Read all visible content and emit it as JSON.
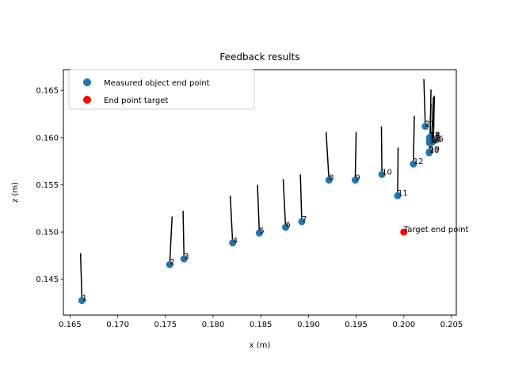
{
  "chart_data": {
    "type": "scatter",
    "title": "Feedback results",
    "xlabel": "x (m)",
    "ylabel": "z (m)",
    "xlim": [
      0.1643,
      0.2055
    ],
    "ylim": [
      0.1412,
      0.1672
    ],
    "xticks": [
      0.165,
      0.17,
      0.175,
      0.18,
      0.185,
      0.19,
      0.195,
      0.2,
      0.205
    ],
    "xtick_labels": [
      "0.165",
      "0.170",
      "0.175",
      "0.180",
      "0.185",
      "0.190",
      "0.195",
      "0.200",
      "0.205"
    ],
    "yticks": [
      0.145,
      0.15,
      0.155,
      0.16,
      0.165
    ],
    "ytick_labels": [
      "0.145",
      "0.150",
      "0.155",
      "0.160",
      "0.165"
    ],
    "grid": false,
    "legend_position": "top-left",
    "series": [
      {
        "name": "Measured object end point",
        "color": "#1f77b4",
        "points": [
          {
            "label": "1",
            "x": 0.16625,
            "z": 0.14275
          },
          {
            "label": "2",
            "x": 0.17545,
            "z": 0.14655
          },
          {
            "label": "3",
            "x": 0.17695,
            "z": 0.14715
          },
          {
            "label": "4",
            "x": 0.18205,
            "z": 0.14885
          },
          {
            "label": "5",
            "x": 0.18485,
            "z": 0.1499
          },
          {
            "label": "6",
            "x": 0.1876,
            "z": 0.1505
          },
          {
            "label": "7",
            "x": 0.1893,
            "z": 0.1511
          },
          {
            "label": "8",
            "x": 0.19215,
            "z": 0.1555
          },
          {
            "label": "9",
            "x": 0.1949,
            "z": 0.1555
          },
          {
            "label": "10",
            "x": 0.1977,
            "z": 0.1561
          },
          {
            "label": "11",
            "x": 0.19935,
            "z": 0.15385
          },
          {
            "label": "12",
            "x": 0.201,
            "z": 0.1572
          },
          {
            "label": "13",
            "x": 0.2027,
            "z": 0.15995
          },
          {
            "label": "14",
            "x": 0.2029,
            "z": 0.1595
          },
          {
            "label": "15",
            "x": 0.2027,
            "z": 0.15945
          },
          {
            "label": "16",
            "x": 0.2031,
            "z": 0.1596
          },
          {
            "label": "17",
            "x": 0.2027,
            "z": 0.15965
          },
          {
            "label": "18",
            "x": 0.20275,
            "z": 0.16005
          },
          {
            "label": "19",
            "x": 0.2027,
            "z": 0.1585
          },
          {
            "label": "20",
            "x": 0.20265,
            "z": 0.1584
          },
          {
            "label": "21",
            "x": 0.20225,
            "z": 0.1612
          }
        ]
      },
      {
        "name": "End point target",
        "color": "#ff0000",
        "points": [
          {
            "label": "Target end point",
            "x": 0.2,
            "z": 0.15
          }
        ]
      }
    ],
    "direction_lines": {
      "color": "#000000",
      "segments": [
        {
          "x0": 0.16625,
          "z0": 0.14275,
          "x1": 0.1661,
          "z1": 0.14775
        },
        {
          "x0": 0.17545,
          "z0": 0.14655,
          "x1": 0.1757,
          "z1": 0.15165
        },
        {
          "x0": 0.17695,
          "z0": 0.14715,
          "x1": 0.17685,
          "z1": 0.15225
        },
        {
          "x0": 0.18205,
          "z0": 0.14885,
          "x1": 0.1818,
          "z1": 0.15385
        },
        {
          "x0": 0.18485,
          "z0": 0.1499,
          "x1": 0.18465,
          "z1": 0.155
        },
        {
          "x0": 0.1876,
          "z0": 0.1505,
          "x1": 0.18735,
          "z1": 0.1556
        },
        {
          "x0": 0.1893,
          "z0": 0.1511,
          "x1": 0.18915,
          "z1": 0.1561
        },
        {
          "x0": 0.19215,
          "z0": 0.1555,
          "x1": 0.19185,
          "z1": 0.1606
        },
        {
          "x0": 0.1949,
          "z0": 0.1555,
          "x1": 0.195,
          "z1": 0.1606
        },
        {
          "x0": 0.1977,
          "z0": 0.1561,
          "x1": 0.19765,
          "z1": 0.1612
        },
        {
          "x0": 0.19935,
          "z0": 0.15385,
          "x1": 0.1994,
          "z1": 0.15895
        },
        {
          "x0": 0.201,
          "z0": 0.1572,
          "x1": 0.2011,
          "z1": 0.1623
        },
        {
          "x0": 0.20225,
          "z0": 0.1612,
          "x1": 0.2021,
          "z1": 0.1662
        },
        {
          "x0": 0.20275,
          "z0": 0.16005,
          "x1": 0.20285,
          "z1": 0.1651
        },
        {
          "x0": 0.2031,
          "z0": 0.1596,
          "x1": 0.2032,
          "z1": 0.16445
        },
        {
          "x0": 0.2027,
          "z0": 0.1585,
          "x1": 0.20285,
          "z1": 0.1636
        },
        {
          "x0": 0.2029,
          "z0": 0.1595,
          "x1": 0.2031,
          "z1": 0.1643
        }
      ]
    }
  }
}
